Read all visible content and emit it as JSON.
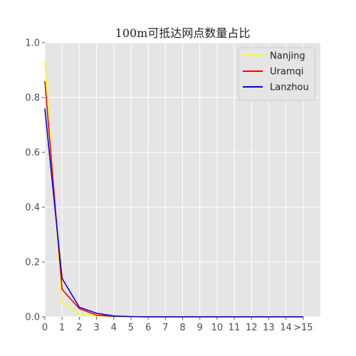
{
  "chart_data": {
    "type": "line",
    "title": "100m可抵达网点数量占比",
    "xlabel": "",
    "ylabel": "",
    "categories": [
      "0",
      "1",
      "2",
      "3",
      "4",
      "5",
      "6",
      "7",
      "8",
      "9",
      "10",
      "11",
      "12",
      "13",
      "14",
      ">15"
    ],
    "x": [
      0,
      1,
      2,
      3,
      4,
      5,
      6,
      7,
      8,
      9,
      10,
      11,
      12,
      13,
      14,
      15
    ],
    "yticks": [
      "0.0",
      "0.2",
      "0.4",
      "0.6",
      "0.8",
      "1.0"
    ],
    "ylim": [
      0,
      1
    ],
    "xlim": [
      0,
      16
    ],
    "grid": true,
    "legend_position": "top-right",
    "series": [
      {
        "name": "Nanjing",
        "color": "#ffff00",
        "values": [
          0.93,
          0.05,
          0.01,
          0.003,
          0.001,
          0.0,
          0,
          0,
          0,
          0,
          0,
          0,
          0,
          0,
          0,
          0
        ]
      },
      {
        "name": "Uramqi",
        "color": "#ff0000",
        "values": [
          0.86,
          0.1,
          0.03,
          0.006,
          0.002,
          0.001,
          0,
          0,
          0,
          0,
          0,
          0,
          0,
          0,
          0,
          0
        ]
      },
      {
        "name": "Lanzhou",
        "color": "#0000ff",
        "values": [
          0.76,
          0.14,
          0.035,
          0.013,
          0.003,
          0.001,
          0,
          0,
          0,
          0,
          0,
          0,
          0,
          0,
          0,
          0
        ]
      }
    ],
    "colors": {
      "plot_background": "#e5e5e5",
      "grid": "#ffffff",
      "legend_background": "#e5e5e5",
      "legend_border": "#cccccc"
    }
  }
}
